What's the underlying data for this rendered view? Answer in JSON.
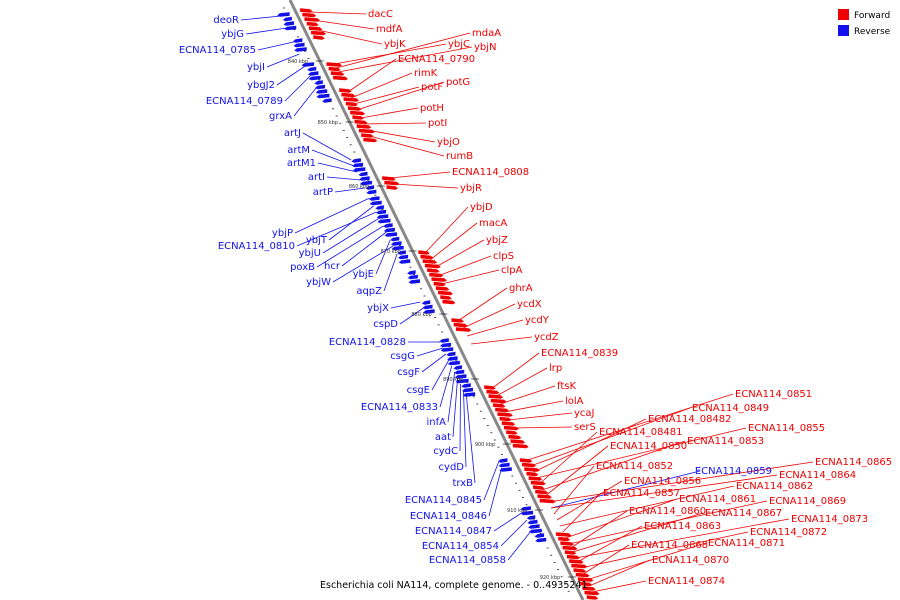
{
  "colors": {
    "forward": "#ee0000",
    "reverse": "#1111ee",
    "backbone": "#888888",
    "tick": "#000000"
  },
  "legend": {
    "forward": "Forward",
    "reverse": "Reverse"
  },
  "footer": "Escherichia coli NA114, complete genome. - 0..4935241",
  "ticks": [
    "840 kbp",
    "850 kbp",
    "860 kbp",
    "870 kbp",
    "880 kbp",
    "890 kbp",
    "900 kbp",
    "910 kbp",
    "920 kbp"
  ],
  "reverse_genes": [
    "deoR",
    "ybjG",
    "ECNA114_0785",
    "ybjI",
    "ybgJ2",
    "ECNA114_0789",
    "grxA",
    "artJ",
    "artM",
    "artM1",
    "artI",
    "artP",
    "ybjP",
    "ybjT",
    "ECNA114_0810",
    "ybjU",
    "poxB",
    "hcr",
    "ybjE",
    "ybjW",
    "aqpZ",
    "ybjX",
    "cspD",
    "ECNA114_0828",
    "csgG",
    "csgF",
    "csgE",
    "ECNA114_0833",
    "infA",
    "aat",
    "cydC",
    "cydD",
    "trxB",
    "ECNA114_0845",
    "ECNA114_0846",
    "ECNA114_0847",
    "ECNA114_0854",
    "ECNA114_0858",
    "ECNA114_0859"
  ],
  "forward_genes": [
    "dacC",
    "mdfA",
    "ybjK",
    "ybjC",
    "mdaA",
    "ybjN",
    "ECNA114_0790",
    "rimK",
    "potF",
    "potG",
    "potH",
    "potI",
    "ybjO",
    "rumB",
    "ECNA114_0808",
    "ybjR",
    "ybjD",
    "macA",
    "ybjZ",
    "clpS",
    "clpA",
    "ghrA",
    "ycdX",
    "ycdY",
    "ycdZ",
    "ECNA114_0839",
    "lrp",
    "ftsK",
    "lolA",
    "ycaJ",
    "serS",
    "ECNA114_0851",
    "ECNA114_0849",
    "ECNA114_08482",
    "ECNA114_0855",
    "ECNA114_08481",
    "ECNA114_0853",
    "ECNA114_0850",
    "ECNA114_0865",
    "ECNA114_0864",
    "ECNA114_0852",
    "ECNA114_0856",
    "ECNA114_0862",
    "ECNA114_0857",
    "ECNA114_0861",
    "ECNA114_0869",
    "ECNA114_0860",
    "ECNA114_0867",
    "ECNA114_0873",
    "ECNA114_0863",
    "ECNA114_0872",
    "ECNA114_0868",
    "ECNA114_0871",
    "ECNA114_0870",
    "ECNA114_0874"
  ]
}
